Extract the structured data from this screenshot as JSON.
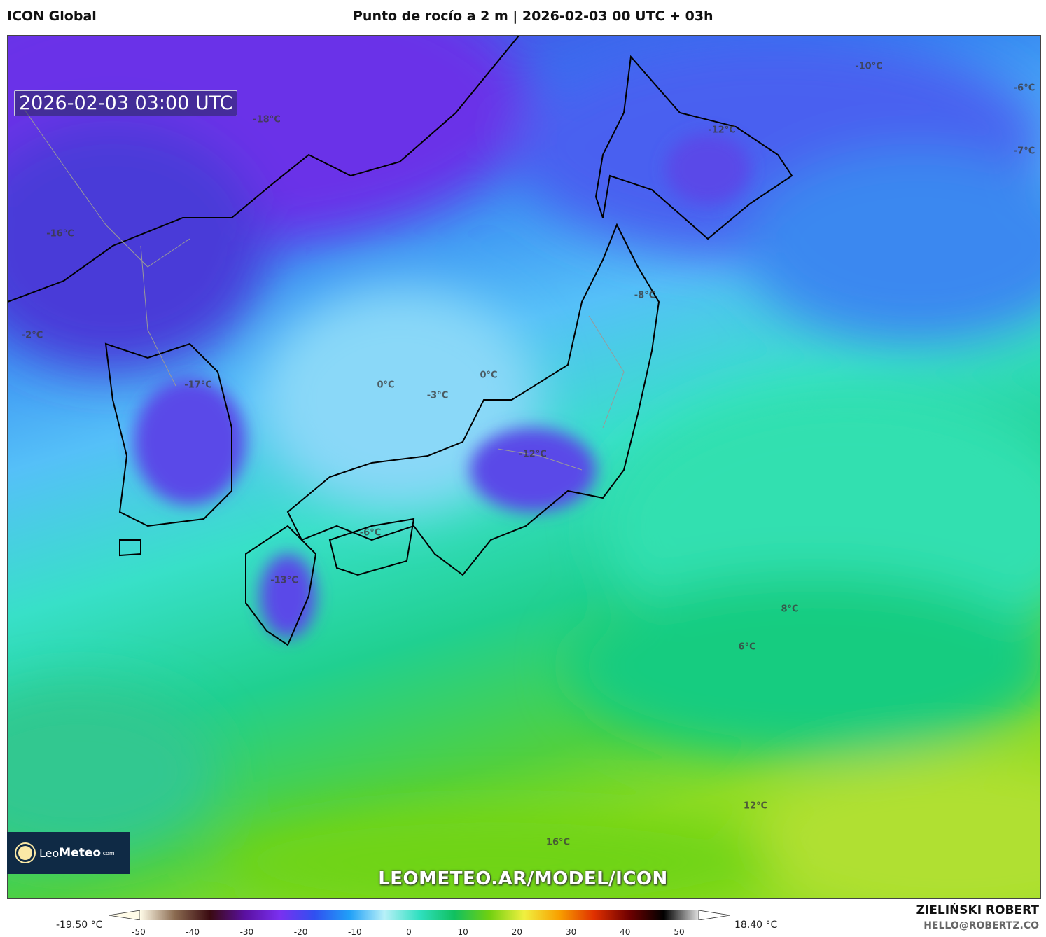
{
  "header": {
    "model": "ICON Global",
    "title": "Punto de rocío a 2 m | 2026-02-03 00 UTC + 03h"
  },
  "map": {
    "valid_time": "2026-02-03 03:00 UTC",
    "labels": [
      "-18°C",
      "-10°C",
      "-6°C",
      "-12°C",
      "-7°C",
      "-16°C",
      "-8°C",
      "-2°C",
      "-17°C",
      "0°C",
      "0°C",
      "-3°C",
      "-12°C",
      "-6°C",
      "-13°C",
      "8°C",
      "6°C",
      "12°C",
      "16°C"
    ],
    "url": "LEOMETEO.AR/MODEL/ICON",
    "logo": {
      "leo": "Leo",
      "meteo": "Meteo",
      "com": ".com"
    }
  },
  "colorbar": {
    "min_label": "-19.50 °C",
    "max_label": "18.40 °C",
    "ticks": [
      "-50",
      "-40",
      "-30",
      "-20",
      "-10",
      "0",
      "10",
      "20",
      "30",
      "40",
      "50"
    ],
    "colors": [
      "#fffbe8",
      "#8a6a50",
      "#3a0a10",
      "#5a10a0",
      "#7a30f0",
      "#3050f0",
      "#20a0f8",
      "#b8f0f8",
      "#30e0c0",
      "#10c060",
      "#70d010",
      "#f0f040",
      "#f8a000",
      "#e03000",
      "#700000",
      "#000000",
      "#e0e0e0"
    ]
  },
  "credits": {
    "author": "ZIELIŃSKI ROBERT",
    "email": "HELLO@ROBERTZ.CO"
  }
}
